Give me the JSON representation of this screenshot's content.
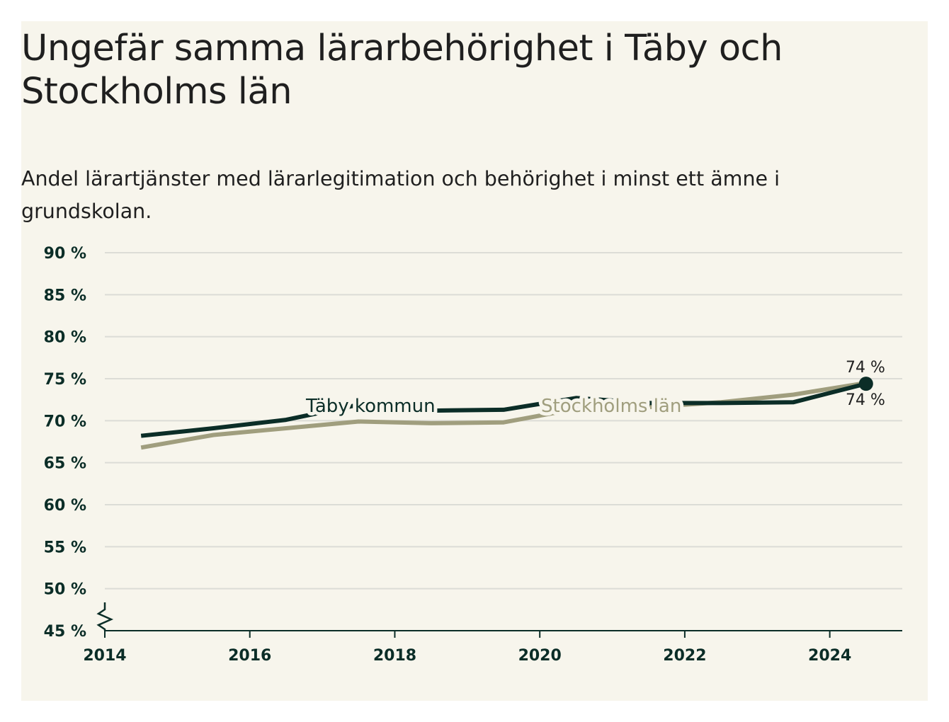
{
  "chart_data": {
    "type": "line",
    "title": "Ungefär samma lärarbehörighet i Täby och Stockholms län",
    "subtitle": "Andel lärartjänster med lärarlegitimation och behörighet i minst ett ämne i grundskolan.",
    "xlabel": "",
    "ylabel": "",
    "x": [
      2014.5,
      2015.5,
      2016.5,
      2017.5,
      2018.5,
      2019.5,
      2020.5,
      2021.5,
      2022.5,
      2023.5,
      2024.5
    ],
    "x_ticks": [
      2014,
      2016,
      2018,
      2020,
      2022,
      2024
    ],
    "x_tick_labels": [
      "2014",
      "2016",
      "2018",
      "2020",
      "2022",
      "2024"
    ],
    "xlim": [
      2014,
      2025
    ],
    "ylim": [
      45,
      90
    ],
    "y_ticks": [
      45,
      50,
      55,
      60,
      65,
      70,
      75,
      80,
      85,
      90
    ],
    "y_tick_labels": [
      "45 %",
      "50 %",
      "55 %",
      "60 %",
      "65 %",
      "70 %",
      "75 %",
      "80 %",
      "85 %",
      "90 %"
    ],
    "axis_break": true,
    "grid": true,
    "legend": "inline labels",
    "series": [
      {
        "name": "Täby kommun",
        "color": "#0b2d27",
        "values": [
          68.2,
          69.1,
          70.1,
          71.9,
          71.2,
          71.3,
          72.7,
          72.1,
          72.1,
          72.2,
          74.4
        ],
        "end_label": "74 %"
      },
      {
        "name": "Stockholms län",
        "color": "#a09e7e",
        "values": [
          66.8,
          68.3,
          69.1,
          69.9,
          69.7,
          69.8,
          71.4,
          71.6,
          72.2,
          73.1,
          74.5
        ],
        "end_label": "74 %"
      }
    ]
  }
}
